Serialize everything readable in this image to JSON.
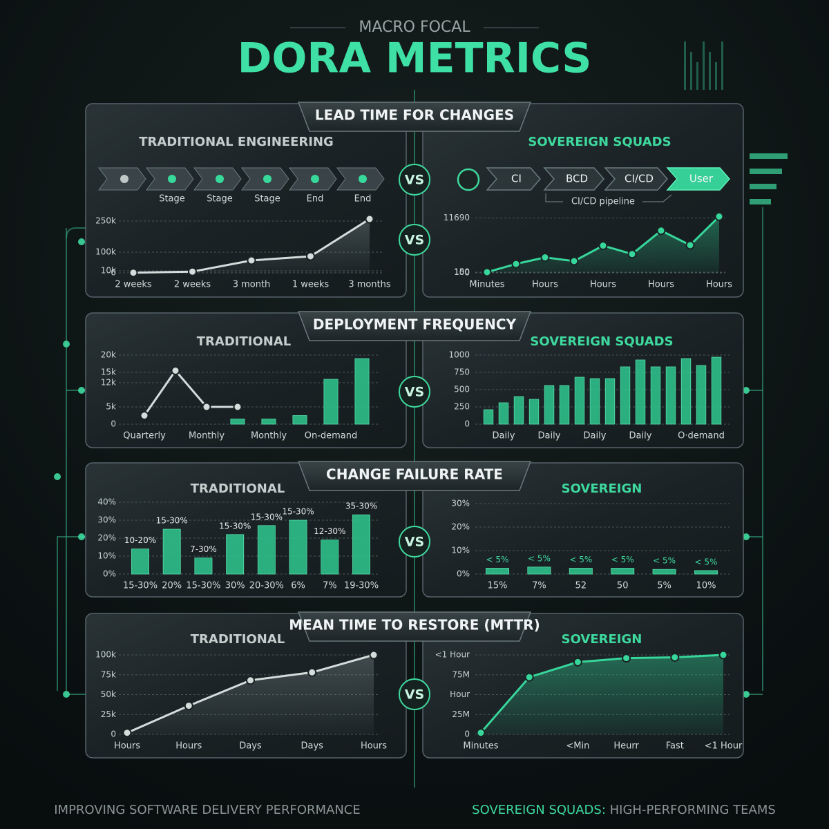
{
  "header": {
    "kicker": "MACRO FOCAL",
    "title": "DORA METRICS"
  },
  "sections": [
    "LEAD TIME FOR CHANGES",
    "DEPLOYMENT FREQUENCY",
    "CHANGE FAILURE RATE",
    "MEAN TIME TO RESTORE (MTTR)"
  ],
  "vs": "VS",
  "pipeline": {
    "traditional_stages": [
      "Stage",
      "Stage",
      "Stage",
      "End",
      "End"
    ],
    "sovereign_steps": [
      "CI",
      "BCD",
      "CI/CD",
      "User"
    ],
    "caption": "CI/CD pipeline"
  },
  "chart_data": [
    {
      "type": "line",
      "title": "TRADITIONAL ENGINEERING",
      "categories": [
        "2 weeks",
        "2 weeks",
        "3 month",
        "1 weeks",
        "3 months"
      ],
      "values": [
        1000,
        6000,
        60000,
        80000,
        260000
      ],
      "color": "#d4dcdc",
      "area": true,
      "ylim": [
        0,
        275000
      ],
      "yticks": [
        0,
        {
          "value": 10000,
          "label": "10k"
        },
        {
          "value": 100000,
          "label": "100k"
        },
        {
          "value": 250000,
          "label": "250k"
        }
      ],
      "grid": true
    },
    {
      "type": "line",
      "title": "SOVEREIGN SQUADS",
      "categories": [
        "Minutes",
        null,
        "Hours",
        null,
        "Hours",
        null,
        "Hours",
        null,
        "Hours"
      ],
      "values": [
        150,
        1900,
        3300,
        2500,
        5800,
        4000,
        9000,
        5900,
        12000
      ],
      "color": "#37d69b",
      "area": true,
      "ylim": [
        0,
        12500
      ],
      "yticks": [
        0,
        100,
        150,
        11690
      ],
      "grid": true
    },
    {
      "type": "combo",
      "title": "TRADITIONAL",
      "categories": [
        "Quarterly",
        null,
        "Monthly",
        null,
        "Monthly",
        null,
        "On-demand",
        null
      ],
      "series": [
        {
          "type": "line",
          "color": "#d4dcdc",
          "values": [
            2500,
            15500,
            5000,
            5000,
            null,
            null,
            null,
            null
          ]
        },
        {
          "type": "bar",
          "color": "#2fbf8a",
          "values": [
            null,
            null,
            null,
            1500,
            1500,
            2500,
            13000,
            19000
          ]
        }
      ],
      "ylim": [
        0,
        22000
      ],
      "yticks": [
        0,
        {
          "value": 5000,
          "label": "5k"
        },
        {
          "value": 12000,
          "label": "12k"
        },
        {
          "value": 15000,
          "label": "15k"
        },
        {
          "value": 20000,
          "label": "20k"
        }
      ],
      "grid": true
    },
    {
      "type": "bar",
      "title": "SOVEREIGN SQUADS",
      "categories": [
        null,
        "Daily",
        null,
        null,
        "Daily",
        null,
        null,
        "Daily",
        null,
        null,
        "Daily",
        null,
        null,
        null,
        "O·demand",
        null
      ],
      "values": [
        210,
        310,
        400,
        360,
        560,
        560,
        680,
        660,
        660,
        830,
        930,
        830,
        830,
        950,
        850,
        970
      ],
      "color": "#2fbf8a",
      "ylim": [
        0,
        1000
      ],
      "yticks": [
        0,
        250,
        500,
        750,
        1000
      ],
      "grid": true
    },
    {
      "type": "bar",
      "title": "TRADITIONAL",
      "categories": [
        "15-30%",
        "20%",
        "15-30%",
        "30%",
        "20-30%",
        "6%",
        "7%",
        "19-30%"
      ],
      "values": [
        14,
        25,
        9,
        22,
        27,
        30,
        19,
        33
      ],
      "value_labels": [
        "10-20%",
        "15-30%",
        "7-30%",
        "15-30%",
        "15-30%",
        "15-30%",
        "12-30%",
        "35-30%"
      ],
      "color": "#2fbf8a",
      "ylim": [
        0,
        40
      ],
      "yticks": [
        {
          "value": 0,
          "label": "0%"
        },
        {
          "value": 10,
          "label": "10%"
        },
        {
          "value": 20,
          "label": "20%"
        },
        {
          "value": 30,
          "label": "30%"
        },
        {
          "value": 40,
          "label": "40%"
        }
      ],
      "grid": true
    },
    {
      "type": "bar",
      "title": "SOVEREIGN",
      "categories": [
        "15%",
        "7%",
        "52",
        "50",
        "5%",
        "10%"
      ],
      "values": [
        2.5,
        3,
        2.5,
        2.5,
        2,
        1.5
      ],
      "value_labels": [
        "< 5%",
        "< 5%",
        "< 5%",
        "< 5%",
        "< 5%",
        "< 5%"
      ],
      "color": "#2fbf8a",
      "ylim": [
        0,
        30
      ],
      "yticks": [
        {
          "value": 0,
          "label": "0%"
        },
        {
          "value": 10,
          "label": "10%"
        },
        {
          "value": 20,
          "label": "20%"
        },
        {
          "value": 30,
          "label": "30%"
        }
      ],
      "grid": true
    },
    {
      "type": "line",
      "title": "TRADITIONAL",
      "categories": [
        "Hours",
        "Hours",
        "Days",
        "Days",
        "Hours"
      ],
      "values": [
        2000,
        36000,
        68000,
        78000,
        100000
      ],
      "color": "#d4dcdc",
      "area": true,
      "ylim": [
        0,
        100000
      ],
      "yticks": [
        0,
        {
          "value": 25000,
          "label": "25k"
        },
        {
          "value": 50000,
          "label": "50k"
        },
        {
          "value": 75000,
          "label": "75k"
        },
        {
          "value": 100000,
          "label": "100k"
        }
      ],
      "grid": true
    },
    {
      "type": "line",
      "title": "SOVEREIGN",
      "categories": [
        "Minutes",
        null,
        "<Min",
        "Heurr",
        "Fast",
        "<1 Hour"
      ],
      "values": [
        2000000,
        72000000,
        91000000,
        96000000,
        97000000,
        100000000
      ],
      "color": "#37d69b",
      "area": true,
      "ylim": [
        0,
        100000000
      ],
      "yticks": [
        0,
        {
          "value": 25000000,
          "label": "25M"
        },
        {
          "value": 50000000,
          "label": "Hour"
        },
        {
          "value": 75000000,
          "label": "75M"
        },
        {
          "value": 100000000,
          "label": "<1 Hour"
        }
      ],
      "grid": true
    }
  ],
  "footer": {
    "left": "IMPROVING SOFTWARE DELIVERY PERFORMANCE",
    "right_highlight": "SOVEREIGN SQUADS:",
    "right": " HIGH-PERFORMING TEAMS"
  }
}
